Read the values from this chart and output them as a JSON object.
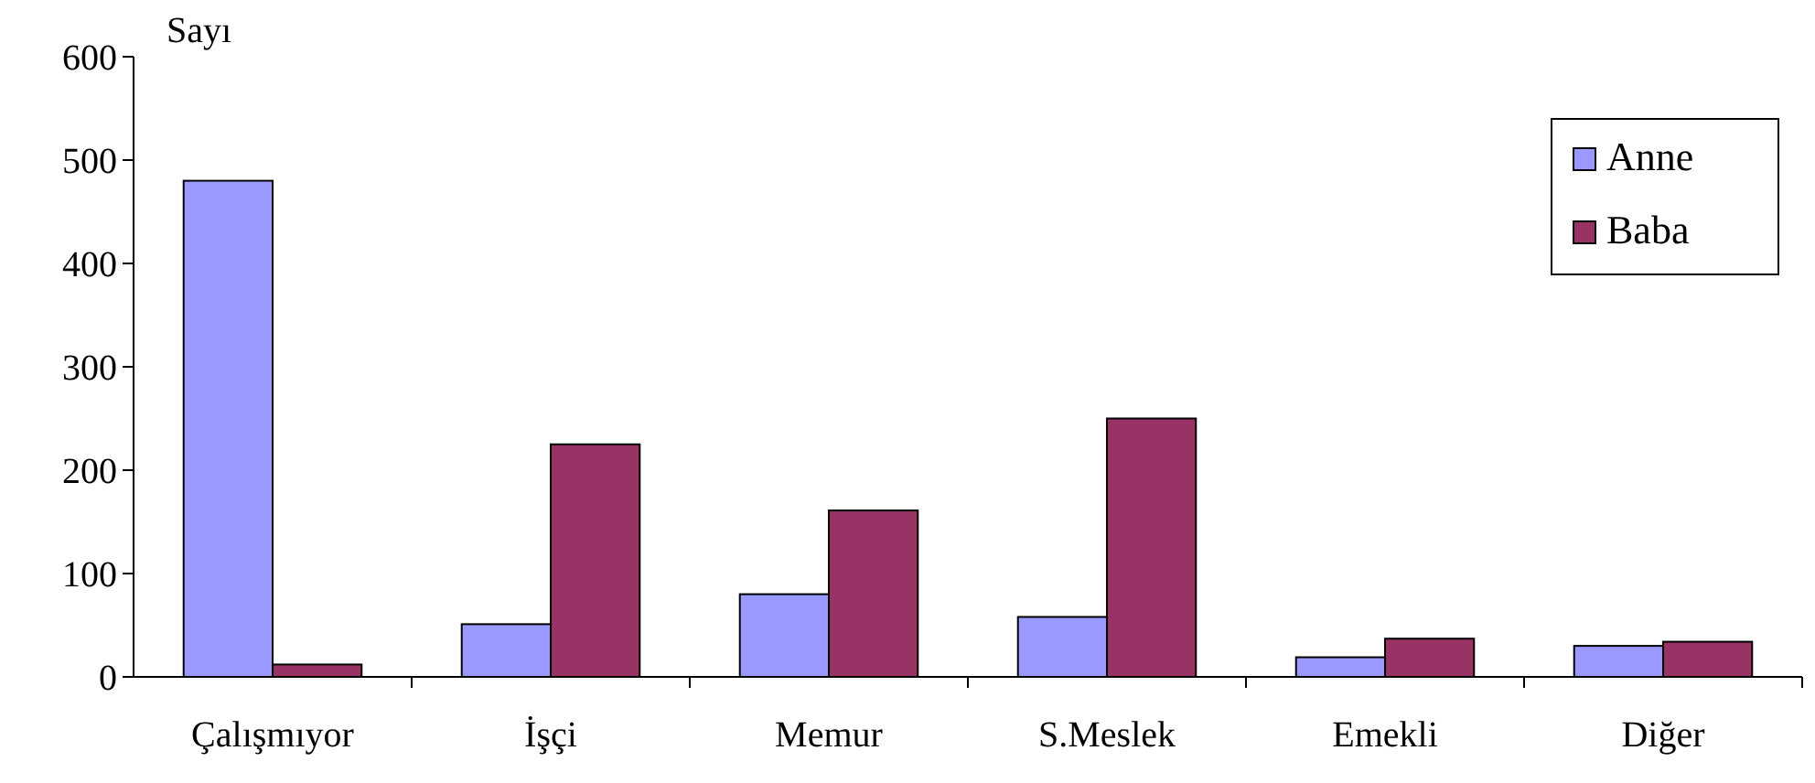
{
  "chart_data": {
    "type": "bar",
    "ylabel": "Sayı",
    "categories": [
      "Çalışmıyor",
      "İşçi",
      "Memur",
      "S.Meslek",
      "Emekli",
      "Diğer"
    ],
    "series": [
      {
        "name": "Anne",
        "color": "#9999ff",
        "values": [
          480,
          51,
          80,
          58,
          19,
          30
        ]
      },
      {
        "name": "Baba",
        "color": "#993366",
        "values": [
          12,
          225,
          161,
          250,
          37,
          34
        ]
      }
    ],
    "ylim": [
      0,
      600
    ],
    "yticks": [
      0,
      100,
      200,
      300,
      400,
      500,
      600
    ],
    "grid": false,
    "legend": "top right"
  }
}
